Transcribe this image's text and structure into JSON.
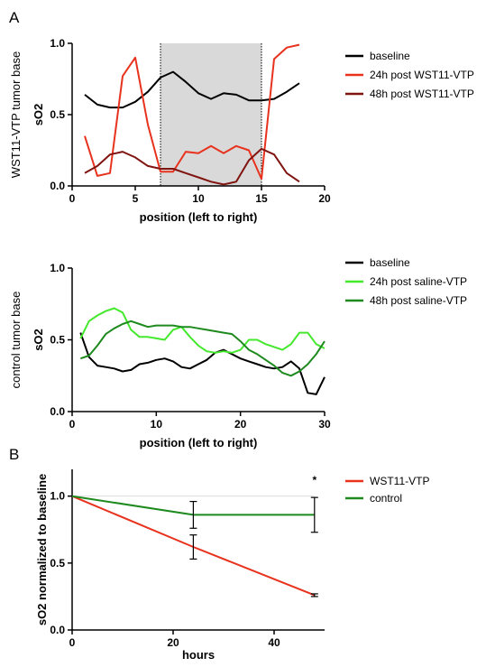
{
  "panels": {
    "a_letter": "A",
    "b_letter": "B"
  },
  "chart_data": [
    {
      "type": "line",
      "panel": "A (top)",
      "side_label": "WST11-VTP  tumor base",
      "xlabel": "position (left to right)",
      "ylabel": "sO2",
      "xlim": [
        0,
        20
      ],
      "ylim": [
        0,
        1.0
      ],
      "xticks": [
        "0",
        "5",
        "10",
        "15",
        "20"
      ],
      "yticks": [
        "0.0",
        "0.5",
        "1.0"
      ],
      "shaded_region": [
        7,
        15
      ],
      "legend_position": "right",
      "series": [
        {
          "name": "baseline",
          "color": "#000000",
          "x": [
            1,
            2,
            3,
            4,
            5,
            6,
            7,
            8,
            9,
            10,
            11,
            12,
            13,
            14,
            15,
            16,
            17,
            18
          ],
          "y": [
            0.64,
            0.57,
            0.55,
            0.55,
            0.59,
            0.66,
            0.76,
            0.8,
            0.73,
            0.65,
            0.61,
            0.65,
            0.64,
            0.6,
            0.6,
            0.61,
            0.66,
            0.72
          ]
        },
        {
          "name": "24h post WST11-VTP",
          "color": "#e8321e",
          "x": [
            1,
            2,
            3,
            4,
            5,
            6,
            7,
            8,
            9,
            10,
            11,
            12,
            13,
            14,
            15,
            16,
            17,
            18
          ],
          "y": [
            0.35,
            0.07,
            0.09,
            0.77,
            0.9,
            0.43,
            0.1,
            0.1,
            0.24,
            0.23,
            0.28,
            0.23,
            0.28,
            0.25,
            0.05,
            0.89,
            0.97,
            0.99
          ]
        },
        {
          "name": "48h post WST11-VTP",
          "color": "#7f1410",
          "x": [
            1,
            2,
            3,
            4,
            5,
            6,
            7,
            8,
            9,
            10,
            11,
            12,
            13,
            14,
            15,
            16,
            17,
            18
          ],
          "y": [
            0.09,
            0.14,
            0.22,
            0.24,
            0.2,
            0.14,
            0.12,
            0.12,
            0.09,
            0.06,
            0.03,
            0.01,
            0.03,
            0.18,
            0.26,
            0.22,
            0.09,
            0.03
          ]
        }
      ]
    },
    {
      "type": "line",
      "panel": "A (bottom)",
      "side_label": "control tumor base",
      "xlabel": "position (left to right)",
      "ylabel": "sO2",
      "xlim": [
        0,
        30
      ],
      "ylim": [
        0,
        1.0
      ],
      "xticks": [
        "0",
        "10",
        "20",
        "30"
      ],
      "yticks": [
        "0.0",
        "0.5",
        "1.0"
      ],
      "legend_position": "right",
      "series": [
        {
          "name": "baseline",
          "color": "#000000",
          "x": [
            1,
            2,
            3,
            4,
            5,
            6,
            7,
            8,
            9,
            10,
            11,
            12,
            13,
            14,
            15,
            16,
            17,
            18,
            19,
            20,
            21,
            22,
            23,
            24,
            25,
            26,
            27,
            28,
            29,
            30
          ],
          "y": [
            0.55,
            0.38,
            0.32,
            0.31,
            0.3,
            0.28,
            0.29,
            0.33,
            0.34,
            0.36,
            0.37,
            0.35,
            0.31,
            0.3,
            0.33,
            0.36,
            0.41,
            0.43,
            0.4,
            0.37,
            0.35,
            0.33,
            0.31,
            0.3,
            0.31,
            0.35,
            0.3,
            0.13,
            0.12,
            0.24
          ]
        },
        {
          "name": "24h post saline-VTP",
          "color": "#44e82d",
          "x": [
            1,
            2,
            3,
            4,
            5,
            6,
            7,
            8,
            9,
            10,
            11,
            12,
            13,
            14,
            15,
            16,
            17,
            18,
            19,
            20,
            21,
            22,
            23,
            24,
            25,
            26,
            27,
            28,
            29,
            30
          ],
          "y": [
            0.51,
            0.63,
            0.67,
            0.7,
            0.72,
            0.69,
            0.57,
            0.52,
            0.52,
            0.51,
            0.5,
            0.57,
            0.59,
            0.52,
            0.46,
            0.42,
            0.41,
            0.42,
            0.41,
            0.43,
            0.5,
            0.5,
            0.47,
            0.45,
            0.43,
            0.47,
            0.55,
            0.55,
            0.47,
            0.44
          ]
        },
        {
          "name": "48h post saline-VTP",
          "color": "#1e8a1e",
          "x": [
            1,
            2,
            3,
            4,
            5,
            6,
            7,
            8,
            9,
            10,
            11,
            12,
            13,
            14,
            15,
            16,
            17,
            18,
            19,
            20,
            21,
            22,
            23,
            24,
            25,
            26,
            27,
            28,
            29,
            30
          ],
          "y": [
            0.37,
            0.39,
            0.46,
            0.54,
            0.58,
            0.61,
            0.63,
            0.61,
            0.59,
            0.6,
            0.6,
            0.6,
            0.59,
            0.59,
            0.58,
            0.57,
            0.56,
            0.55,
            0.54,
            0.49,
            0.43,
            0.4,
            0.36,
            0.32,
            0.27,
            0.25,
            0.28,
            0.33,
            0.4,
            0.49
          ]
        }
      ]
    },
    {
      "type": "line",
      "panel": "B",
      "xlabel": "hours",
      "ylabel": "sO2 normalized to baseline",
      "xlim": [
        0,
        50
      ],
      "ylim": [
        0,
        1.2
      ],
      "xticks": [
        "0",
        "20",
        "40"
      ],
      "yticks": [
        "0.0",
        "0.5",
        "1.0"
      ],
      "annotation": "*",
      "legend_position": "right",
      "series": [
        {
          "name": "WST11-VTP",
          "color": "#e8321e",
          "x": [
            0,
            24,
            48
          ],
          "y": [
            1.0,
            0.62,
            0.26
          ],
          "error": [
            0,
            0.09,
            0.01
          ]
        },
        {
          "name": "control",
          "color": "#1e8a1e",
          "x": [
            0,
            24,
            48
          ],
          "y": [
            1.0,
            0.86,
            0.86
          ],
          "error": [
            0,
            0.1,
            0.13
          ]
        }
      ]
    }
  ]
}
